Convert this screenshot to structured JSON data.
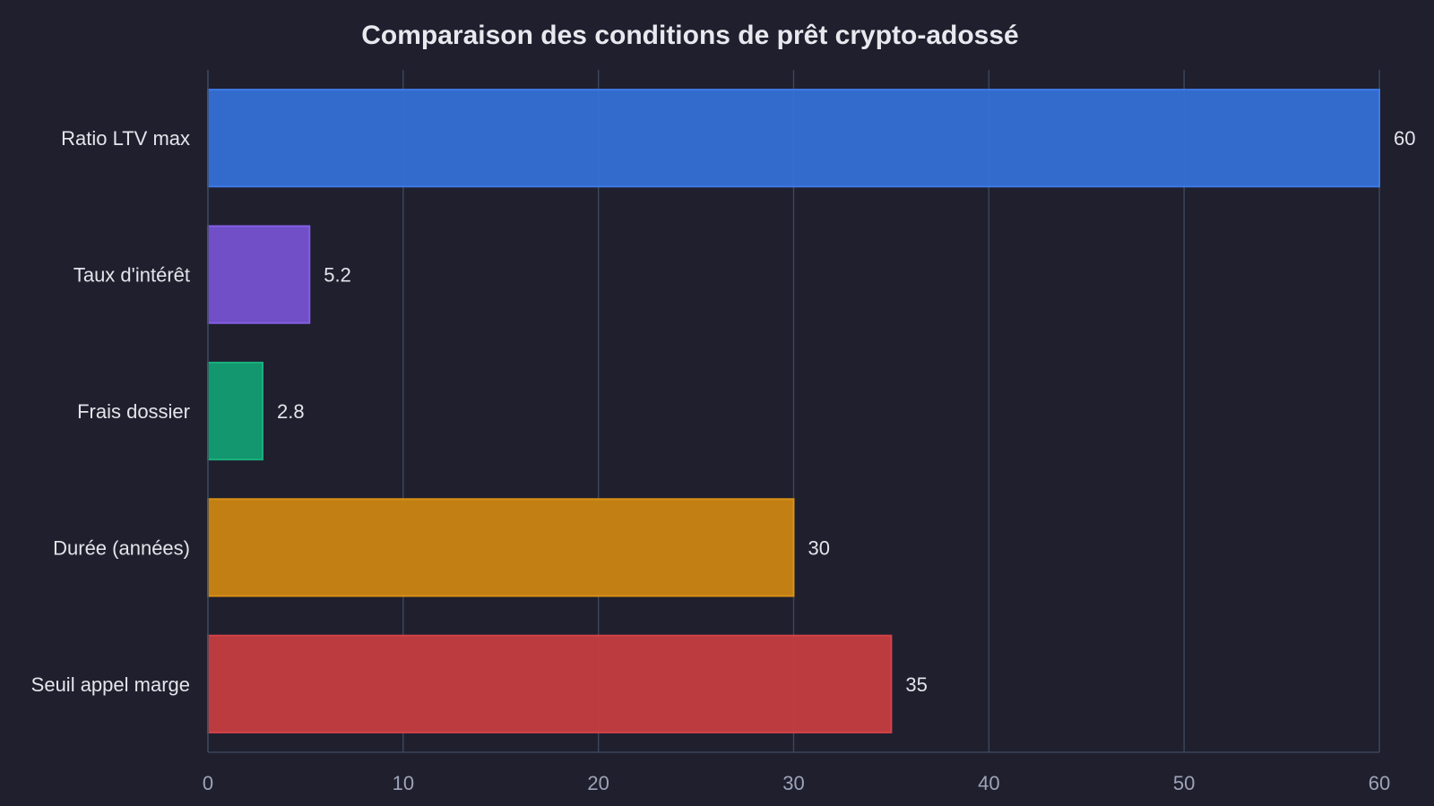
{
  "chart_data": {
    "type": "bar",
    "orientation": "horizontal",
    "title": "Comparaison des conditions de prêt crypto-adossé",
    "xlabel": "",
    "ylabel": "",
    "categories": [
      "Ratio LTV max",
      "Taux d'intérêt",
      "Frais dossier",
      "Durée (années)",
      "Seuil appel marge"
    ],
    "values": [
      60,
      5.2,
      2.8,
      30,
      35
    ],
    "value_labels": [
      "60",
      "5.2",
      "2.8",
      "30",
      "35"
    ],
    "colors": [
      "#3570d6",
      "#7552d0",
      "#129e72",
      "#cb8512",
      "#c43d40"
    ],
    "edge_colors": [
      "#3f7ef0",
      "#8a63ef",
      "#19b883",
      "#e39614",
      "#dd4448"
    ],
    "xlim": [
      0,
      60
    ],
    "xticks": [
      0,
      10,
      20,
      30,
      40,
      50,
      60
    ],
    "grid": true
  }
}
